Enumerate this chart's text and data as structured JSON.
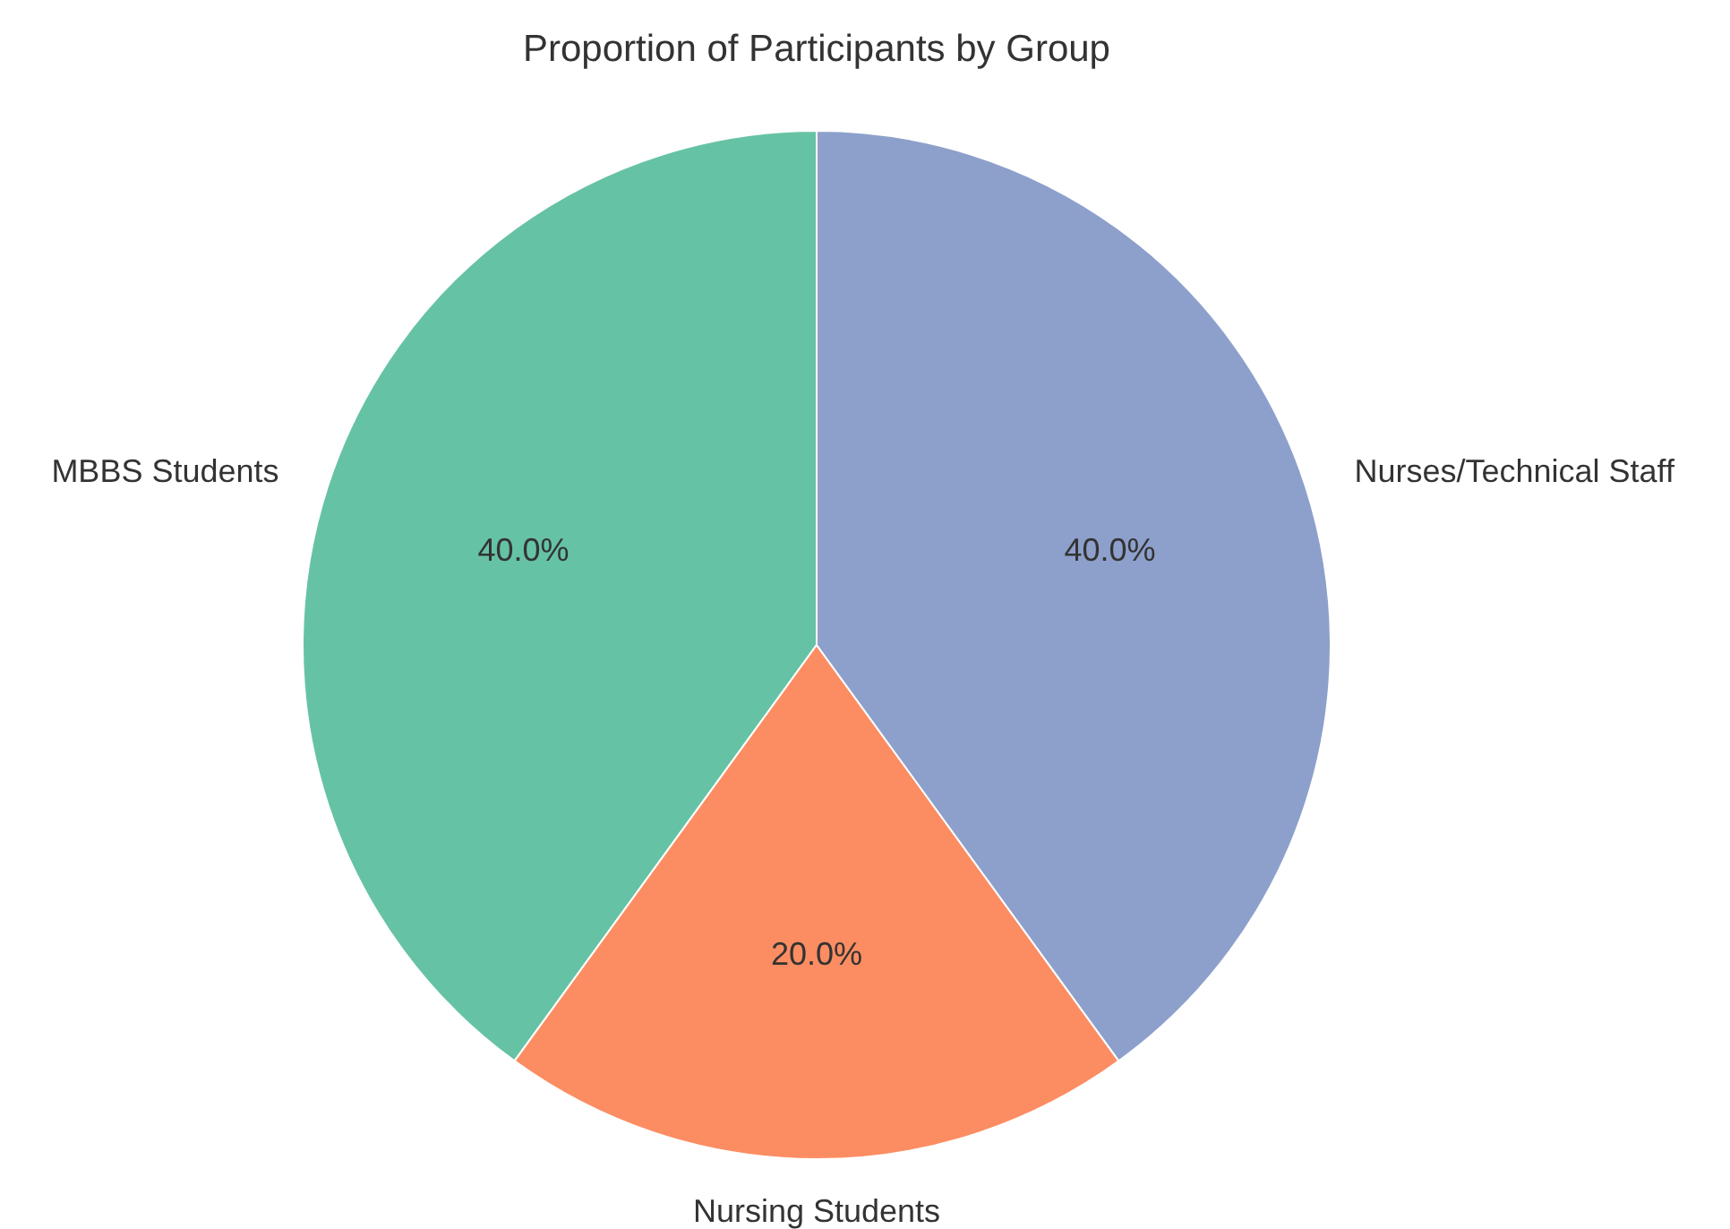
{
  "chart_data": {
    "type": "pie",
    "title": "Proportion of Participants by Group",
    "categories": [
      "MBBS Students",
      "Nursing Students",
      "Nurses/Technical Staff"
    ],
    "values": [
      40,
      20,
      40
    ],
    "colors": [
      "#66c2a5",
      "#fc8d62",
      "#8da0cb"
    ],
    "value_labels": [
      "40.0%",
      "20.0%",
      "40.0%"
    ]
  }
}
